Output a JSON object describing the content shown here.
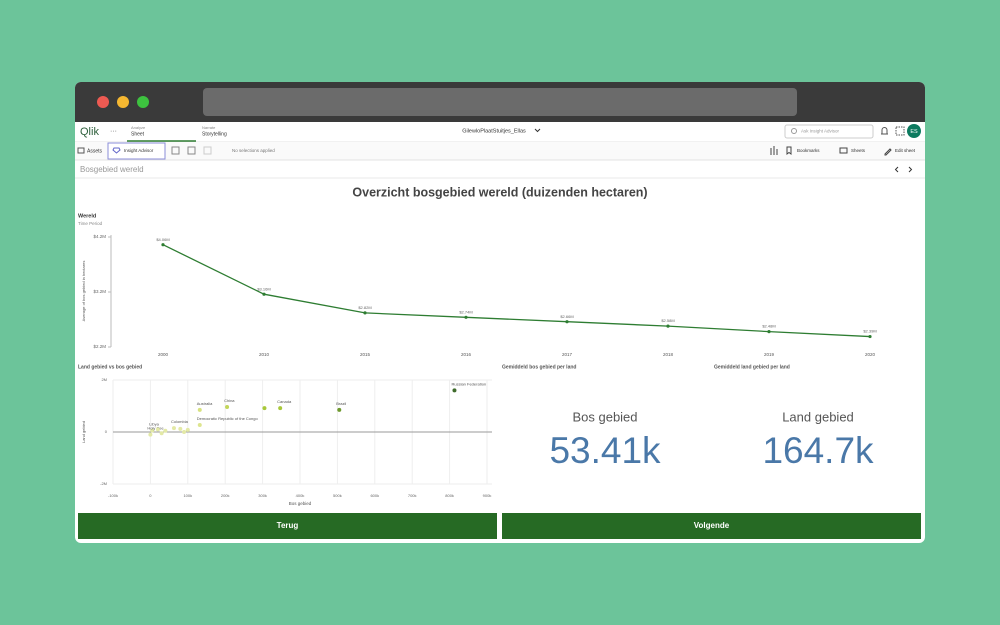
{
  "header": {
    "logo": "Qlik",
    "more": "···",
    "tabs": [
      {
        "small": "Analyze",
        "label": "Sheet"
      },
      {
        "small": "Narrate",
        "label": "Storytelling"
      }
    ],
    "app_name": "GilewloPlaatStuitjes_Ellas",
    "search": "Ask Insight Advisor",
    "avatar": "ES"
  },
  "toolbar": {
    "assets": "Assets",
    "insight": "Insight Advisor",
    "selections": "No selections applied",
    "bookmarks": "Bookmarks",
    "sheets": "Sheets",
    "edit": "Edit sheet"
  },
  "sheet": {
    "title": "Bosgebied wereld",
    "heading": "Overzicht bosgebied wereld (duizenden hectaren)"
  },
  "chart_data": [
    {
      "type": "line",
      "title": "Wereld",
      "subtitle": "Time Period",
      "y_label": "Average of bos gebied in hectares",
      "color": "#2e7d32",
      "categories": [
        "2000",
        "2010",
        "2015",
        "2016",
        "2017",
        "2018",
        "2019",
        "2020"
      ],
      "values": [
        4060000,
        3160000,
        2820000,
        2740000,
        2660000,
        2580000,
        2480000,
        2390000
      ],
      "value_labels": [
        "$4.06M",
        "$3.16M",
        "$2.82M",
        "$2.74M",
        "$2.66M",
        "$2.58M",
        "$2.48M",
        "$2.39M"
      ],
      "ylim": [
        2200000,
        4200000
      ],
      "yticks": [
        {
          "value": 2200000,
          "label": "$2.2M"
        },
        {
          "value": 3200000,
          "label": "$3.2M"
        },
        {
          "value": 4200000,
          "label": "$4.2M"
        }
      ]
    },
    {
      "type": "scatter",
      "title": "Land gebied vs bos gebied",
      "x_label": "Bos gebied",
      "y_label": "Land gebied",
      "x": [
        813000,
        505000,
        347000,
        305000,
        205000,
        132000,
        132000,
        63000,
        5000,
        0,
        20000,
        40000,
        80000,
        90000,
        30000,
        100000
      ],
      "y": [
        1600000,
        850000,
        920000,
        920000,
        960000,
        850000,
        270000,
        150000,
        60000,
        -100000,
        100000,
        50000,
        120000,
        0,
        -50000,
        80000
      ],
      "point_labels": [
        "Russian Federation",
        "Brazil",
        "Canada",
        null,
        "China",
        "Australia",
        "Democratic Republic of the Congo",
        "Colombia",
        "Libya",
        "Holy See",
        null,
        null,
        null,
        null,
        null,
        null
      ],
      "point_colors": [
        "#3f6b2c",
        "#6f9a2f",
        "#a8c83a",
        "#a8c83a",
        "#c3d65a",
        "#d7e27f",
        "#dde58f",
        "#e3e9a6",
        "#e3e9a6",
        "#e3e9a6",
        "#e3e9a6",
        "#e3e9a6",
        "#e3e9a6",
        "#e3e9a6",
        "#e3e9a6",
        "#e3e9a6"
      ],
      "xlim": [
        -100000,
        900000
      ],
      "xticks": [
        {
          "value": -100000,
          "label": "-100k"
        },
        0,
        {
          "value": 100000,
          "label": "100k"
        },
        {
          "value": 200000,
          "label": "200k"
        },
        {
          "value": 300000,
          "label": "300k"
        },
        {
          "value": 400000,
          "label": "400k"
        },
        {
          "value": 500000,
          "label": "500k"
        },
        {
          "value": 600000,
          "label": "600k"
        },
        {
          "value": 700000,
          "label": "700k"
        },
        {
          "value": 800000,
          "label": "800k"
        },
        {
          "value": 900000,
          "label": "900k"
        }
      ],
      "ylim": [
        -2000000,
        2000000
      ],
      "yticks": [
        {
          "value": -2000000,
          "label": "-2M"
        },
        0,
        {
          "value": 2000000,
          "label": "2M"
        }
      ],
      "grid": true
    }
  ],
  "kpis": [
    {
      "title": "Gemiddeld bos gebied per land",
      "label": "Bos gebied",
      "value": "53.41k"
    },
    {
      "title": "Gemiddeld land gebied per land",
      "label": "Land gebied",
      "value": "164.7k"
    }
  ],
  "buttons": [
    "Terug",
    "Volgende"
  ]
}
